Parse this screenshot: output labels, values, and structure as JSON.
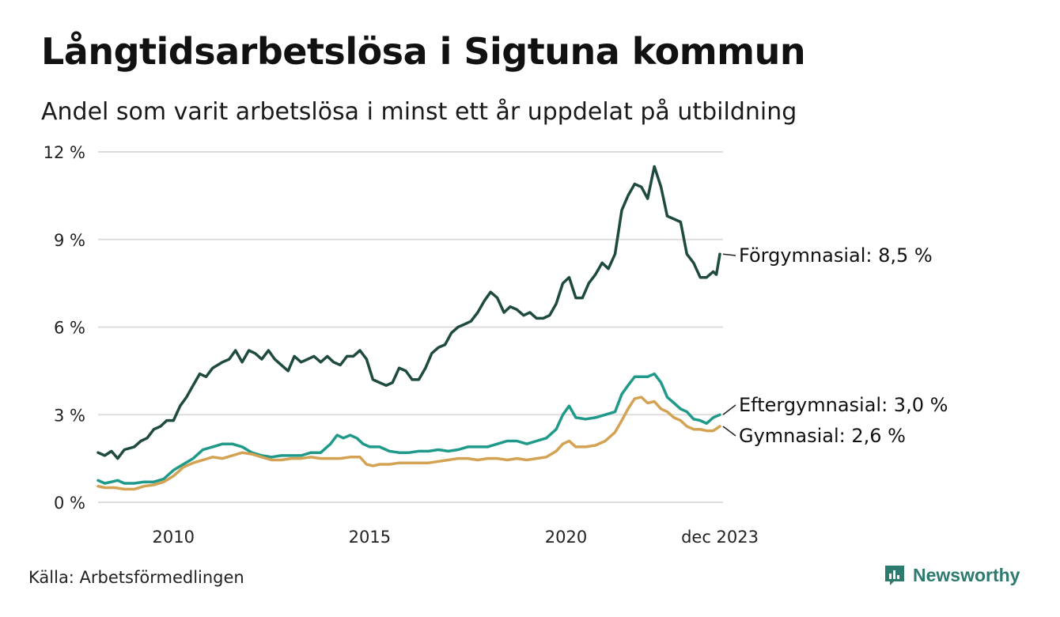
{
  "header": {
    "title": "Långtidsarbetslösa i Sigtuna kommun",
    "subtitle": "Andel som varit arbetslösa i minst ett år uppdelat på utbildning"
  },
  "footer": {
    "source": "Källa: Arbetsförmedlingen",
    "brand": "Newsworthy",
    "brand_icon": "newsworthy-logo-icon"
  },
  "colors": {
    "forgymnasial": "#1e4a40",
    "eftergymnasial": "#1f9a8a",
    "gymnasial": "#d4a253",
    "grid": "#dddddd",
    "brand": "#2d7a6e"
  },
  "chart_data": {
    "type": "line",
    "title": "Långtidsarbetslösa i Sigtuna kommun",
    "subtitle": "Andel som varit arbetslösa i minst ett år uppdelat på utbildning",
    "xlabel": "",
    "ylabel": "",
    "xlim": [
      2008.08,
      2024.0
    ],
    "ylim": [
      0,
      12
    ],
    "y_ticks": [
      {
        "value": 0,
        "label": "0 %"
      },
      {
        "value": 3,
        "label": "3 %"
      },
      {
        "value": 6,
        "label": "6 %"
      },
      {
        "value": 9,
        "label": "9 %"
      },
      {
        "value": 12,
        "label": "12 %"
      }
    ],
    "x_ticks": [
      {
        "value": 2010.0,
        "label": "2010"
      },
      {
        "value": 2015.0,
        "label": "2015"
      },
      {
        "value": 2020.0,
        "label": "2020"
      },
      {
        "value": 2023.92,
        "label": "dec 2023"
      }
    ],
    "grid": true,
    "series": [
      {
        "name": "Förgymnasial",
        "end_label": "Förgymnasial: 8,5 %",
        "color_key": "forgymnasial",
        "points": [
          [
            2008.08,
            1.7
          ],
          [
            2008.25,
            1.6
          ],
          [
            2008.42,
            1.75
          ],
          [
            2008.58,
            1.5
          ],
          [
            2008.75,
            1.8
          ],
          [
            2009.0,
            1.9
          ],
          [
            2009.17,
            2.1
          ],
          [
            2009.33,
            2.2
          ],
          [
            2009.5,
            2.5
          ],
          [
            2009.67,
            2.6
          ],
          [
            2009.83,
            2.8
          ],
          [
            2010.0,
            2.8
          ],
          [
            2010.17,
            3.3
          ],
          [
            2010.33,
            3.6
          ],
          [
            2010.5,
            4.0
          ],
          [
            2010.67,
            4.4
          ],
          [
            2010.83,
            4.3
          ],
          [
            2011.0,
            4.6
          ],
          [
            2011.25,
            4.8
          ],
          [
            2011.42,
            4.9
          ],
          [
            2011.58,
            5.2
          ],
          [
            2011.75,
            4.8
          ],
          [
            2011.92,
            5.2
          ],
          [
            2012.08,
            5.1
          ],
          [
            2012.25,
            4.9
          ],
          [
            2012.42,
            5.2
          ],
          [
            2012.58,
            4.9
          ],
          [
            2012.75,
            4.7
          ],
          [
            2012.92,
            4.5
          ],
          [
            2013.08,
            5.0
          ],
          [
            2013.25,
            4.8
          ],
          [
            2013.42,
            4.9
          ],
          [
            2013.58,
            5.0
          ],
          [
            2013.75,
            4.8
          ],
          [
            2013.92,
            5.0
          ],
          [
            2014.08,
            4.8
          ],
          [
            2014.25,
            4.7
          ],
          [
            2014.42,
            5.0
          ],
          [
            2014.58,
            5.0
          ],
          [
            2014.75,
            5.2
          ],
          [
            2014.92,
            4.9
          ],
          [
            2015.08,
            4.2
          ],
          [
            2015.25,
            4.1
          ],
          [
            2015.42,
            4.0
          ],
          [
            2015.58,
            4.1
          ],
          [
            2015.75,
            4.6
          ],
          [
            2015.92,
            4.5
          ],
          [
            2016.08,
            4.2
          ],
          [
            2016.25,
            4.2
          ],
          [
            2016.42,
            4.6
          ],
          [
            2016.58,
            5.1
          ],
          [
            2016.75,
            5.3
          ],
          [
            2016.92,
            5.4
          ],
          [
            2017.08,
            5.8
          ],
          [
            2017.25,
            6.0
          ],
          [
            2017.42,
            6.1
          ],
          [
            2017.58,
            6.2
          ],
          [
            2017.75,
            6.5
          ],
          [
            2017.92,
            6.9
          ],
          [
            2018.08,
            7.2
          ],
          [
            2018.25,
            7.0
          ],
          [
            2018.42,
            6.5
          ],
          [
            2018.58,
            6.7
          ],
          [
            2018.75,
            6.6
          ],
          [
            2018.92,
            6.4
          ],
          [
            2019.08,
            6.5
          ],
          [
            2019.25,
            6.3
          ],
          [
            2019.42,
            6.3
          ],
          [
            2019.58,
            6.4
          ],
          [
            2019.75,
            6.8
          ],
          [
            2019.92,
            7.5
          ],
          [
            2020.08,
            7.7
          ],
          [
            2020.25,
            7.0
          ],
          [
            2020.42,
            7.0
          ],
          [
            2020.58,
            7.5
          ],
          [
            2020.75,
            7.8
          ],
          [
            2020.92,
            8.2
          ],
          [
            2021.08,
            8.0
          ],
          [
            2021.25,
            8.5
          ],
          [
            2021.42,
            10.0
          ],
          [
            2021.58,
            10.5
          ],
          [
            2021.75,
            10.9
          ],
          [
            2021.92,
            10.8
          ],
          [
            2022.08,
            10.4
          ],
          [
            2022.25,
            11.5
          ],
          [
            2022.42,
            10.8
          ],
          [
            2022.58,
            9.8
          ],
          [
            2022.75,
            9.7
          ],
          [
            2022.92,
            9.6
          ],
          [
            2023.08,
            8.5
          ],
          [
            2023.25,
            8.2
          ],
          [
            2023.42,
            7.7
          ],
          [
            2023.58,
            7.7
          ],
          [
            2023.75,
            7.9
          ],
          [
            2023.83,
            7.8
          ],
          [
            2023.92,
            8.5
          ]
        ]
      },
      {
        "name": "Eftergymnasial",
        "end_label": "Eftergymnasial: 3,0 %",
        "color_key": "eftergymnasial",
        "points": [
          [
            2008.08,
            0.75
          ],
          [
            2008.25,
            0.65
          ],
          [
            2008.42,
            0.7
          ],
          [
            2008.58,
            0.75
          ],
          [
            2008.75,
            0.65
          ],
          [
            2009.0,
            0.65
          ],
          [
            2009.25,
            0.7
          ],
          [
            2009.5,
            0.7
          ],
          [
            2009.75,
            0.8
          ],
          [
            2010.0,
            1.1
          ],
          [
            2010.25,
            1.3
          ],
          [
            2010.5,
            1.5
          ],
          [
            2010.75,
            1.8
          ],
          [
            2011.0,
            1.9
          ],
          [
            2011.25,
            2.0
          ],
          [
            2011.5,
            2.0
          ],
          [
            2011.75,
            1.9
          ],
          [
            2012.0,
            1.7
          ],
          [
            2012.25,
            1.6
          ],
          [
            2012.5,
            1.55
          ],
          [
            2012.75,
            1.6
          ],
          [
            2013.0,
            1.6
          ],
          [
            2013.25,
            1.6
          ],
          [
            2013.5,
            1.7
          ],
          [
            2013.75,
            1.7
          ],
          [
            2014.0,
            2.0
          ],
          [
            2014.17,
            2.3
          ],
          [
            2014.33,
            2.2
          ],
          [
            2014.5,
            2.3
          ],
          [
            2014.67,
            2.2
          ],
          [
            2014.83,
            2.0
          ],
          [
            2015.0,
            1.9
          ],
          [
            2015.25,
            1.9
          ],
          [
            2015.5,
            1.75
          ],
          [
            2015.75,
            1.7
          ],
          [
            2016.0,
            1.7
          ],
          [
            2016.25,
            1.75
          ],
          [
            2016.5,
            1.75
          ],
          [
            2016.75,
            1.8
          ],
          [
            2017.0,
            1.75
          ],
          [
            2017.25,
            1.8
          ],
          [
            2017.5,
            1.9
          ],
          [
            2017.75,
            1.9
          ],
          [
            2018.0,
            1.9
          ],
          [
            2018.25,
            2.0
          ],
          [
            2018.5,
            2.1
          ],
          [
            2018.75,
            2.1
          ],
          [
            2019.0,
            2.0
          ],
          [
            2019.25,
            2.1
          ],
          [
            2019.5,
            2.2
          ],
          [
            2019.75,
            2.5
          ],
          [
            2019.92,
            3.0
          ],
          [
            2020.08,
            3.3
          ],
          [
            2020.25,
            2.9
          ],
          [
            2020.5,
            2.85
          ],
          [
            2020.75,
            2.9
          ],
          [
            2021.0,
            3.0
          ],
          [
            2021.25,
            3.1
          ],
          [
            2021.42,
            3.7
          ],
          [
            2021.58,
            4.0
          ],
          [
            2021.75,
            4.3
          ],
          [
            2021.92,
            4.3
          ],
          [
            2022.08,
            4.3
          ],
          [
            2022.25,
            4.4
          ],
          [
            2022.42,
            4.1
          ],
          [
            2022.58,
            3.6
          ],
          [
            2022.75,
            3.4
          ],
          [
            2022.92,
            3.2
          ],
          [
            2023.08,
            3.1
          ],
          [
            2023.25,
            2.85
          ],
          [
            2023.42,
            2.8
          ],
          [
            2023.58,
            2.7
          ],
          [
            2023.75,
            2.9
          ],
          [
            2023.92,
            3.0
          ]
        ]
      },
      {
        "name": "Gymnasial",
        "end_label": "Gymnasial: 2,6 %",
        "color_key": "gymnasial",
        "points": [
          [
            2008.08,
            0.55
          ],
          [
            2008.25,
            0.5
          ],
          [
            2008.5,
            0.5
          ],
          [
            2008.75,
            0.45
          ],
          [
            2009.0,
            0.45
          ],
          [
            2009.25,
            0.55
          ],
          [
            2009.5,
            0.6
          ],
          [
            2009.75,
            0.7
          ],
          [
            2010.0,
            0.9
          ],
          [
            2010.25,
            1.2
          ],
          [
            2010.5,
            1.35
          ],
          [
            2010.75,
            1.45
          ],
          [
            2011.0,
            1.55
          ],
          [
            2011.25,
            1.5
          ],
          [
            2011.5,
            1.6
          ],
          [
            2011.75,
            1.7
          ],
          [
            2012.0,
            1.65
          ],
          [
            2012.25,
            1.55
          ],
          [
            2012.5,
            1.45
          ],
          [
            2012.75,
            1.45
          ],
          [
            2013.0,
            1.5
          ],
          [
            2013.25,
            1.5
          ],
          [
            2013.5,
            1.55
          ],
          [
            2013.75,
            1.5
          ],
          [
            2014.0,
            1.5
          ],
          [
            2014.25,
            1.5
          ],
          [
            2014.5,
            1.55
          ],
          [
            2014.75,
            1.55
          ],
          [
            2014.92,
            1.3
          ],
          [
            2015.08,
            1.25
          ],
          [
            2015.25,
            1.3
          ],
          [
            2015.5,
            1.3
          ],
          [
            2015.75,
            1.35
          ],
          [
            2016.0,
            1.35
          ],
          [
            2016.25,
            1.35
          ],
          [
            2016.5,
            1.35
          ],
          [
            2016.75,
            1.4
          ],
          [
            2017.0,
            1.45
          ],
          [
            2017.25,
            1.5
          ],
          [
            2017.5,
            1.5
          ],
          [
            2017.75,
            1.45
          ],
          [
            2018.0,
            1.5
          ],
          [
            2018.25,
            1.5
          ],
          [
            2018.5,
            1.45
          ],
          [
            2018.75,
            1.5
          ],
          [
            2019.0,
            1.45
          ],
          [
            2019.25,
            1.5
          ],
          [
            2019.5,
            1.55
          ],
          [
            2019.75,
            1.75
          ],
          [
            2019.92,
            2.0
          ],
          [
            2020.08,
            2.1
          ],
          [
            2020.25,
            1.9
          ],
          [
            2020.5,
            1.9
          ],
          [
            2020.75,
            1.95
          ],
          [
            2021.0,
            2.1
          ],
          [
            2021.25,
            2.4
          ],
          [
            2021.42,
            2.8
          ],
          [
            2021.58,
            3.2
          ],
          [
            2021.75,
            3.55
          ],
          [
            2021.92,
            3.6
          ],
          [
            2022.08,
            3.4
          ],
          [
            2022.25,
            3.45
          ],
          [
            2022.42,
            3.2
          ],
          [
            2022.58,
            3.1
          ],
          [
            2022.75,
            2.9
          ],
          [
            2022.92,
            2.8
          ],
          [
            2023.08,
            2.6
          ],
          [
            2023.25,
            2.5
          ],
          [
            2023.42,
            2.5
          ],
          [
            2023.58,
            2.45
          ],
          [
            2023.75,
            2.45
          ],
          [
            2023.92,
            2.6
          ]
        ]
      }
    ]
  }
}
